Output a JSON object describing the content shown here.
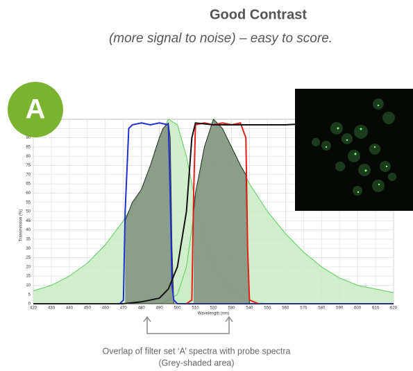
{
  "chart_data": {
    "type": "line",
    "title": "Good Contrast",
    "subtitle": "(more signal to noise) – easy to score.",
    "badge": "A",
    "x_label": "Wavelength (nm)",
    "y_label": "Transmission (%)",
    "caption": [
      "Overlap of filter set ‘A’ spectra with probe spectra",
      "(Grey-shaded area)"
    ],
    "xlim": [
      420,
      620
    ],
    "ylim": [
      0,
      100
    ],
    "xticks": [
      420,
      430,
      440,
      450,
      460,
      470,
      480,
      490,
      500,
      510,
      520,
      530,
      540,
      550,
      560,
      570,
      580,
      590,
      600,
      610,
      620
    ],
    "yticks": [
      0,
      5,
      10,
      15,
      20,
      25,
      30,
      35,
      40,
      45,
      50,
      55,
      60,
      65,
      70,
      75,
      80,
      85,
      90,
      95
    ],
    "grid": true,
    "series": [
      {
        "color": "#5ccc5c",
        "fill": "#c9ecc4",
        "x": [
          420,
          430,
          440,
          450,
          460,
          470,
          480,
          485,
          490,
          495,
          500,
          505,
          510,
          515,
          520,
          530,
          540,
          550
        ],
        "values": [
          7,
          10,
          15,
          22,
          32,
          45,
          62,
          75,
          90,
          100,
          97,
          80,
          55,
          35,
          20,
          7,
          2,
          0
        ]
      },
      {
        "color": "#5ccc5c",
        "fill": "#c9ecc4",
        "x": [
          490,
          495,
          500,
          505,
          510,
          515,
          520,
          525,
          530,
          540,
          550,
          560,
          570,
          580,
          590,
          600,
          610,
          620
        ],
        "values": [
          0,
          2,
          5,
          20,
          55,
          85,
          100,
          95,
          85,
          65,
          50,
          38,
          28,
          20,
          14,
          10,
          8,
          6
        ]
      },
      {
        "color": "#2a2a2a",
        "fill": "#7f8f7c",
        "x": [
          471,
          475,
          480,
          485,
          490,
          492,
          495,
          496,
          497,
          498
        ],
        "values": [
          45,
          55,
          62,
          75,
          90,
          95,
          98,
          90,
          30,
          0
        ]
      },
      {
        "color": "#2a2a2a",
        "fill": "#7f8f7c",
        "x": [
          509,
          510,
          515,
          520,
          525,
          530,
          535,
          538,
          539,
          540
        ],
        "values": [
          50,
          60,
          85,
          100,
          95,
          85,
          75,
          70,
          30,
          0
        ]
      },
      {
        "color": "#1f2fd0",
        "fill": null,
        "x": [
          420,
          468,
          470,
          471,
          473,
          475,
          480,
          485,
          490,
          495,
          496,
          497,
          498,
          500,
          620
        ],
        "values": [
          0,
          0,
          2,
          50,
          95,
          97,
          98,
          97,
          98,
          97,
          60,
          10,
          2,
          0,
          0
        ]
      },
      {
        "color": "#e0201a",
        "fill": null,
        "x": [
          505,
          508,
          509,
          510,
          515,
          520,
          525,
          530,
          535,
          538,
          539,
          540,
          545
        ],
        "values": [
          0,
          2,
          60,
          97,
          98,
          97,
          98,
          97,
          98,
          90,
          30,
          2,
          0
        ]
      },
      {
        "color": "#111111",
        "fill": null,
        "x": [
          420,
          470,
          480,
          490,
          495,
          500,
          505,
          508,
          510,
          520,
          540,
          560,
          580,
          600,
          620
        ],
        "values": [
          0,
          0,
          1,
          3,
          8,
          20,
          50,
          90,
          98,
          97,
          97,
          97,
          98,
          98,
          98
        ]
      }
    ]
  }
}
